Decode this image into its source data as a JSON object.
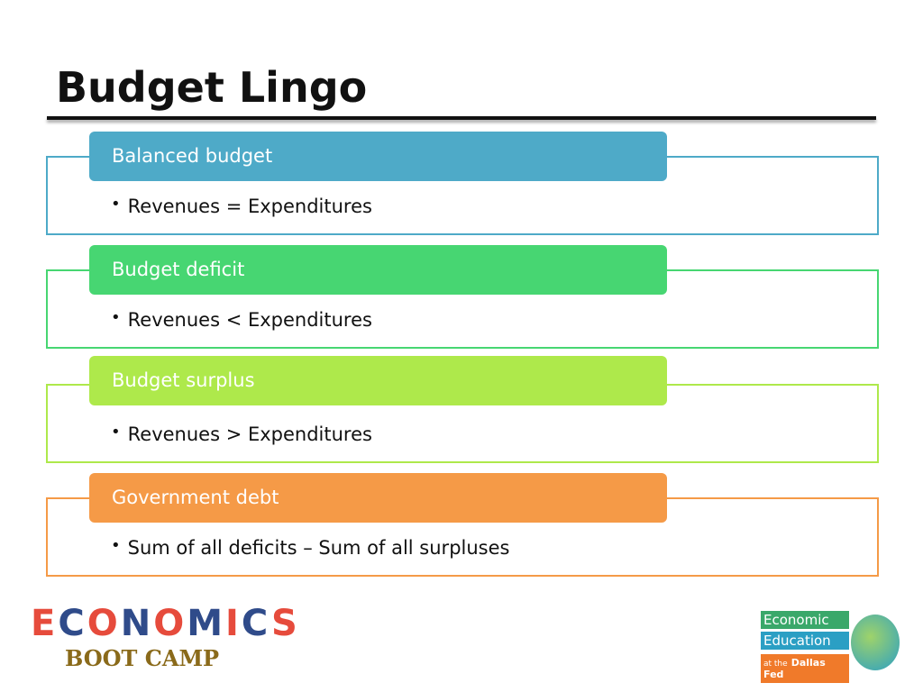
{
  "header": {
    "title": "Budget Lingo"
  },
  "items": [
    {
      "heading": "Balanced budget",
      "bullet": "Revenues = Expenditures",
      "color": "#4eaac8"
    },
    {
      "heading": "Budget deficit",
      "bullet": "Revenues < Expenditures",
      "color": "#47d672"
    },
    {
      "heading": "Budget surplus",
      "bullet": "Revenues > Expenditures",
      "color": "#aee94b"
    },
    {
      "heading": "Government debt",
      "bullet": "Sum of all deficits – Sum of all surpluses",
      "color": "#f59a47"
    }
  ],
  "logos": {
    "left": {
      "word": "ECONOMICS",
      "subtitle": "BOOT CAMP"
    },
    "right": {
      "line1": "Economic",
      "line2": "Education",
      "line3": "at the",
      "line4": "Dallas Fed"
    }
  }
}
